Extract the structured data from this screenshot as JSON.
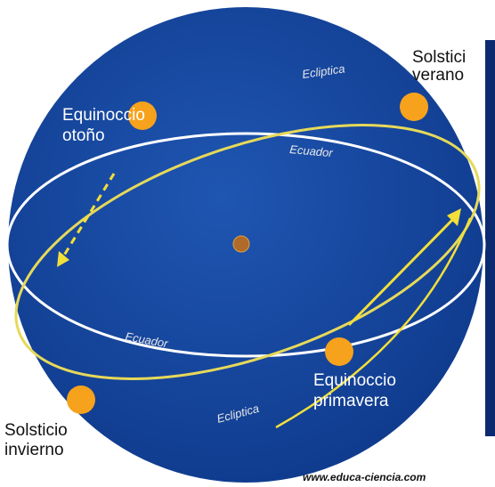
{
  "labels": {
    "summer_solstice": [
      "Solstici",
      "verano"
    ],
    "autumn_equinox": [
      "Equinoccio",
      "otoño"
    ],
    "spring_equinox": [
      "Equinoccio",
      "primavera"
    ],
    "winter_solstice": [
      "Solsticio",
      "invierno"
    ],
    "ecliptic_top": "Ecliptica",
    "ecliptic_bottom": "Ecliptica",
    "equator_top": "Ecuador",
    "equator_bottom": "Ecuador"
  },
  "watermark": "www.educa-ciencia.com"
}
